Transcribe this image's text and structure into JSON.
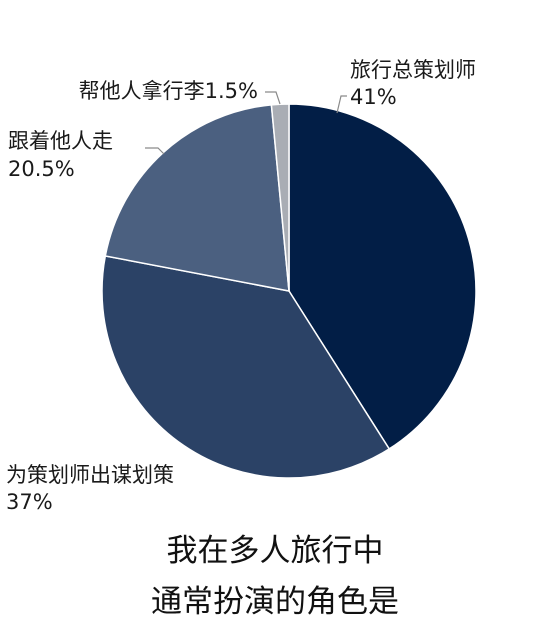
{
  "chart_data": {
    "type": "pie",
    "title": "我在多人旅行中",
    "subtitle": "通常扮演的角色是",
    "slices": [
      {
        "name": "旅行总策划师",
        "value_label": "41%",
        "value": 41,
        "color": "#021e46"
      },
      {
        "name": "为策划师出谋划策",
        "value_label": "37%",
        "value": 37,
        "color": "#2b4266"
      },
      {
        "name": "跟着他人走",
        "value_label": "20.5%",
        "value": 20.5,
        "color": "#4b6080"
      },
      {
        "name": "帮他人拿行李",
        "value_label": "1.5%",
        "value": 1.5,
        "color": "#a9adb4"
      }
    ],
    "legend": "none",
    "start_angle": "12 o'clock",
    "direction": "clockwise"
  }
}
